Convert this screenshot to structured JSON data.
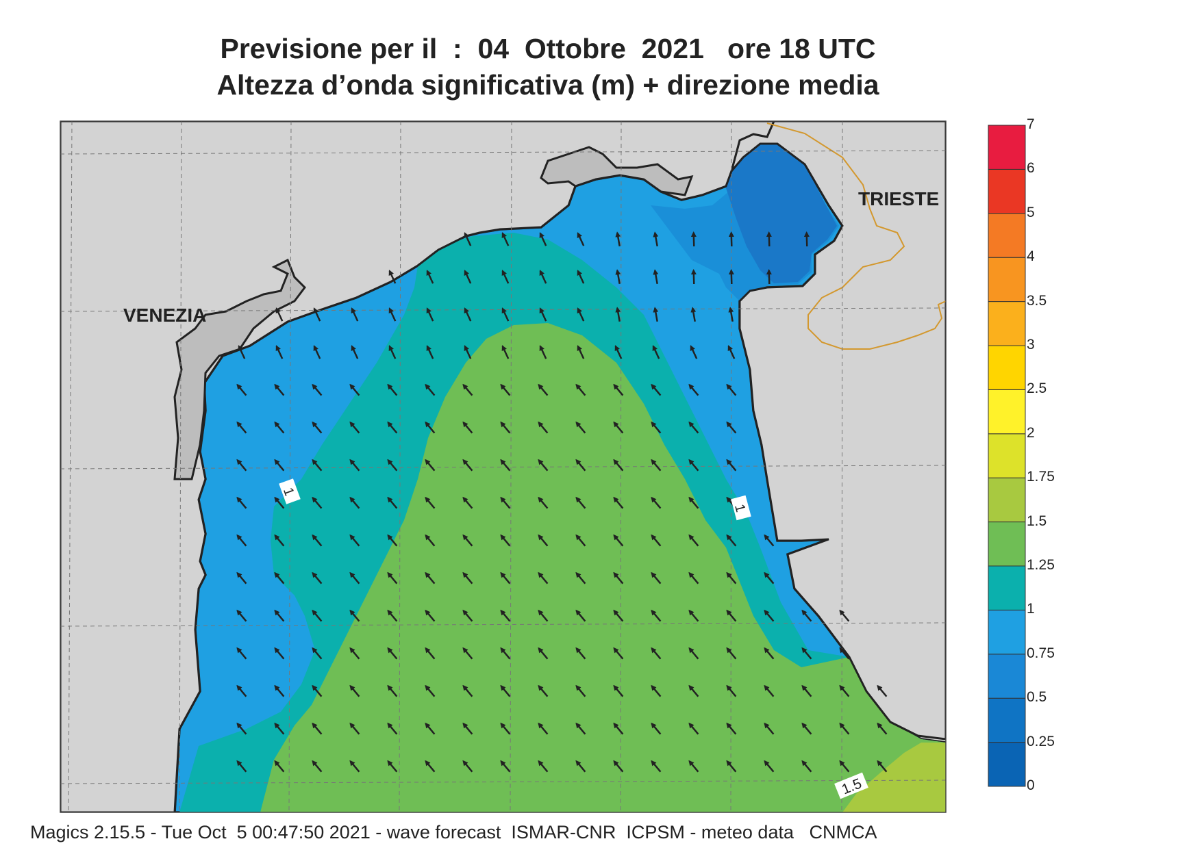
{
  "title_line1": "Previsione per il  :  04  Ottobre  2021   ore 18 UTC",
  "title_line2": "Altezza d’onda significativa (m) + direzione media",
  "places": {
    "venezia": "VENEZIA",
    "trieste": "TRIESTE"
  },
  "contour_labels": [
    "1",
    "1",
    "1.5"
  ],
  "colorbar": {
    "labels": [
      "0",
      "0.25",
      "0.5",
      "0.75",
      "1",
      "1.25",
      "1.5",
      "1.75",
      "2",
      "2.5",
      "3",
      "3.5",
      "4",
      "5",
      "6",
      "7"
    ],
    "colors": [
      "#0a64b4",
      "#0f74c4",
      "#1a88d6",
      "#1fa0e2",
      "#0bb0ad",
      "#6fbe55",
      "#a8c940",
      "#dde22a",
      "#fff22a",
      "#ffd500",
      "#fbb01c",
      "#f89520",
      "#f47a24",
      "#ea3724",
      "#e81c40",
      "#e8186f"
    ]
  },
  "sea_colors": {
    "band_025": "#1a78c8",
    "band_05": "#1a8fd8",
    "band_075": "#1fa0e2",
    "band_1": "#0bb0ad",
    "band_125": "#6fbe55",
    "band_15": "#a8c940",
    "land": "#d3d3d3",
    "lagoon": "#bdbdbd",
    "border": "#d3982e"
  },
  "footer": "Magics 2.15.5 - Tue Oct  5 00:47:50 2021 - wave forecast  ISMAR-CNR  ICPSM - meteo data   CNMCA"
}
